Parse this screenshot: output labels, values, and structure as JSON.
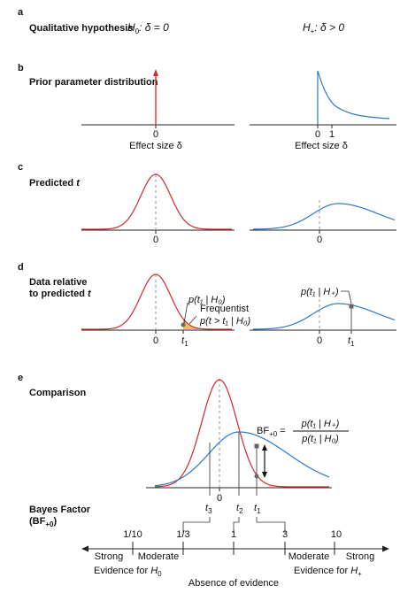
{
  "colors": {
    "null_curve": "#d62728",
    "alt_curve": "#2f78c4",
    "tail_fill": "#f0b23c",
    "marker": "#666666"
  },
  "panels": {
    "a": {
      "letter": "a",
      "title": "Qualitative hypothesis",
      "h0": "H",
      "h0_sub": "0",
      "h0_rest": ": δ = 0",
      "hp": "H",
      "hp_sub": "+",
      "hp_rest": ": δ > 0"
    },
    "b": {
      "letter": "b",
      "title": "Prior parameter distribution",
      "left_tick": "0",
      "right_tick0": "0",
      "right_tick1": "1",
      "xlabel": "Effect size δ"
    },
    "c": {
      "letter": "c",
      "title_main": "Predicted ",
      "title_var": "t",
      "left_tick": "0",
      "right_tick": "0"
    },
    "d": {
      "letter": "d",
      "title_line1": "Data relative",
      "title_line2_main": "to predicted ",
      "title_line2_var": "t",
      "left_tick0": "0",
      "left_tick_t": "t",
      "left_tick_t_sub": "1",
      "right_tick0": "0",
      "right_tick_t": "t",
      "right_tick_t_sub": "1",
      "p_h0": "p(t₁ | H₀)",
      "freq_line1": "Frequentist",
      "freq_line2": "p(t > t₁ | H₀)",
      "p_hp": "p(t₁ | H₊)"
    },
    "e": {
      "letter": "e",
      "title": "Comparison",
      "bf_lhs": "BF",
      "bf_sub": "+0",
      "bf_eq": " =",
      "bf_num": "p(t₁ | H₊)",
      "bf_den": "p(t₁ | H₀)",
      "tick0": "0",
      "t3": "t",
      "t3_sub": "3",
      "t2": "t",
      "t2_sub": "2",
      "t1": "t",
      "t1_sub": "1"
    },
    "bf_scale": {
      "title_line1": "Bayes Factor",
      "title_line2_main": "(BF",
      "title_line2_sub": "+0",
      "title_line2_end": ")",
      "ticks": [
        "1/10",
        "1/3",
        "1",
        "3",
        "10"
      ],
      "left_strong": "Strong",
      "left_moderate": "Moderate",
      "right_moderate": "Moderate",
      "right_strong": "Strong",
      "evidence_h0_main": "Evidence for ",
      "evidence_h0_h": "H",
      "evidence_h0_sub": "0",
      "evidence_hp_main": "Evidence for ",
      "evidence_hp_h": "H",
      "evidence_hp_sub": "+",
      "absence": "Absence of evidence"
    }
  }
}
